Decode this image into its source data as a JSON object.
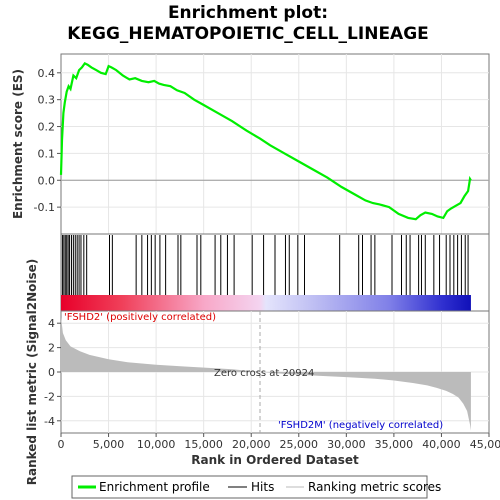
{
  "chart_data": {
    "type": "line",
    "title": "Enrichment plot:",
    "subtitle": "KEGG_HEMATOPOIETIC_CELL_LINEAGE",
    "xlabel": "Rank in Ordered Dataset",
    "top_ylabel": "Enrichment score (ES)",
    "bottom_ylabel": "Ranked list metric (Signal2Noise)",
    "xlim": [
      0,
      45000
    ],
    "x_ticks": [
      0,
      5000,
      10000,
      15000,
      20000,
      25000,
      30000,
      35000,
      40000,
      45000
    ],
    "x_tick_labels": [
      "0",
      "5,000",
      "10,000",
      "15,000",
      "20,000",
      "25,000",
      "30,000",
      "35,000",
      "40,000",
      "45,000"
    ],
    "es_ylim": [
      -0.2,
      0.47
    ],
    "es_ticks": [
      -0.1,
      0.0,
      0.1,
      0.2,
      0.3,
      0.4
    ],
    "es_tick_labels": [
      "-0.1",
      "0.0",
      "0.1",
      "0.2",
      "0.3",
      "0.4"
    ],
    "metric_ylim": [
      -5,
      5
    ],
    "metric_ticks": [
      -4,
      -2,
      0,
      2,
      4
    ],
    "metric_tick_labels": [
      "-4",
      "-2",
      "0",
      "2",
      "4"
    ],
    "n_genes": 43100,
    "zero_cross": 20924,
    "zero_cross_label": "Zero cross at 20924",
    "positive_label": "'FSHD2' (positively correlated)",
    "negative_label": "'FSHD2M' (negatively correlated)",
    "grid": true,
    "colors": {
      "enrichment": "#00ee00",
      "hits": "#000000",
      "metric_fill": "#bbbbbb",
      "positive_text": "#dd0000",
      "negative_text": "#0000cc",
      "zero_line": "#999999"
    },
    "enrichment_profile": {
      "x": [
        0,
        100,
        250,
        400,
        600,
        800,
        1000,
        1300,
        1600,
        1900,
        2200,
        2500,
        2800,
        3200,
        3700,
        4200,
        4700,
        5000,
        5300,
        5800,
        6500,
        7200,
        7800,
        8500,
        9200,
        9800,
        10300,
        10800,
        11500,
        12200,
        13000,
        14000,
        15000,
        16500,
        18000,
        19500,
        20924,
        22000,
        23500,
        25000,
        26500,
        28000,
        29500,
        31000,
        32000,
        32800,
        33500,
        34500,
        35500,
        36500,
        37300,
        37800,
        38300,
        39000,
        39600,
        40200,
        40600,
        41000,
        41500,
        42000,
        42400,
        42800,
        43000,
        43100
      ],
      "y": [
        0.02,
        0.15,
        0.25,
        0.29,
        0.33,
        0.35,
        0.34,
        0.39,
        0.38,
        0.41,
        0.42,
        0.435,
        0.43,
        0.42,
        0.41,
        0.4,
        0.395,
        0.425,
        0.42,
        0.41,
        0.39,
        0.375,
        0.38,
        0.37,
        0.365,
        0.37,
        0.36,
        0.355,
        0.35,
        0.335,
        0.325,
        0.3,
        0.28,
        0.25,
        0.22,
        0.185,
        0.155,
        0.13,
        0.1,
        0.07,
        0.04,
        0.01,
        -0.025,
        -0.055,
        -0.075,
        -0.085,
        -0.09,
        -0.1,
        -0.125,
        -0.14,
        -0.145,
        -0.13,
        -0.12,
        -0.125,
        -0.135,
        -0.14,
        -0.115,
        -0.105,
        -0.095,
        -0.085,
        -0.06,
        -0.04,
        0.005,
        0.0
      ]
    },
    "hit_ranks": [
      150,
      300,
      450,
      600,
      750,
      900,
      1100,
      1300,
      1500,
      1700,
      1900,
      2100,
      2400,
      2700,
      5100,
      5400,
      7900,
      8500,
      9100,
      9500,
      9900,
      10400,
      11000,
      12300,
      12600,
      14300,
      14700,
      16200,
      16800,
      17500,
      18200,
      20100,
      21300,
      22500,
      23600,
      24000,
      24900,
      25600,
      29300,
      31300,
      31700,
      32600,
      33000,
      34800,
      35800,
      36300,
      36700,
      37600,
      37900,
      38300,
      39200,
      39800,
      40500,
      40900,
      41300,
      41700,
      42100,
      42500,
      42800
    ],
    "metric_profile": {
      "x": [
        0,
        200,
        500,
        1000,
        2000,
        3000,
        5000,
        7000,
        10000,
        13000,
        16000,
        18000,
        20924,
        24000,
        27000,
        30000,
        33000,
        35000,
        37000,
        38500,
        39500,
        40500,
        41200,
        41800,
        42300,
        42700,
        43000,
        43100
      ],
      "y": [
        4.5,
        3.2,
        2.6,
        2.1,
        1.7,
        1.4,
        1.05,
        0.8,
        0.6,
        0.45,
        0.32,
        0.22,
        0.0,
        -0.18,
        -0.3,
        -0.42,
        -0.55,
        -0.7,
        -0.9,
        -1.1,
        -1.3,
        -1.55,
        -1.8,
        -2.1,
        -2.6,
        -3.2,
        -4.3,
        -4.8
      ]
    },
    "legend": [
      "Enrichment profile",
      "Hits",
      "Ranking metric scores"
    ]
  }
}
